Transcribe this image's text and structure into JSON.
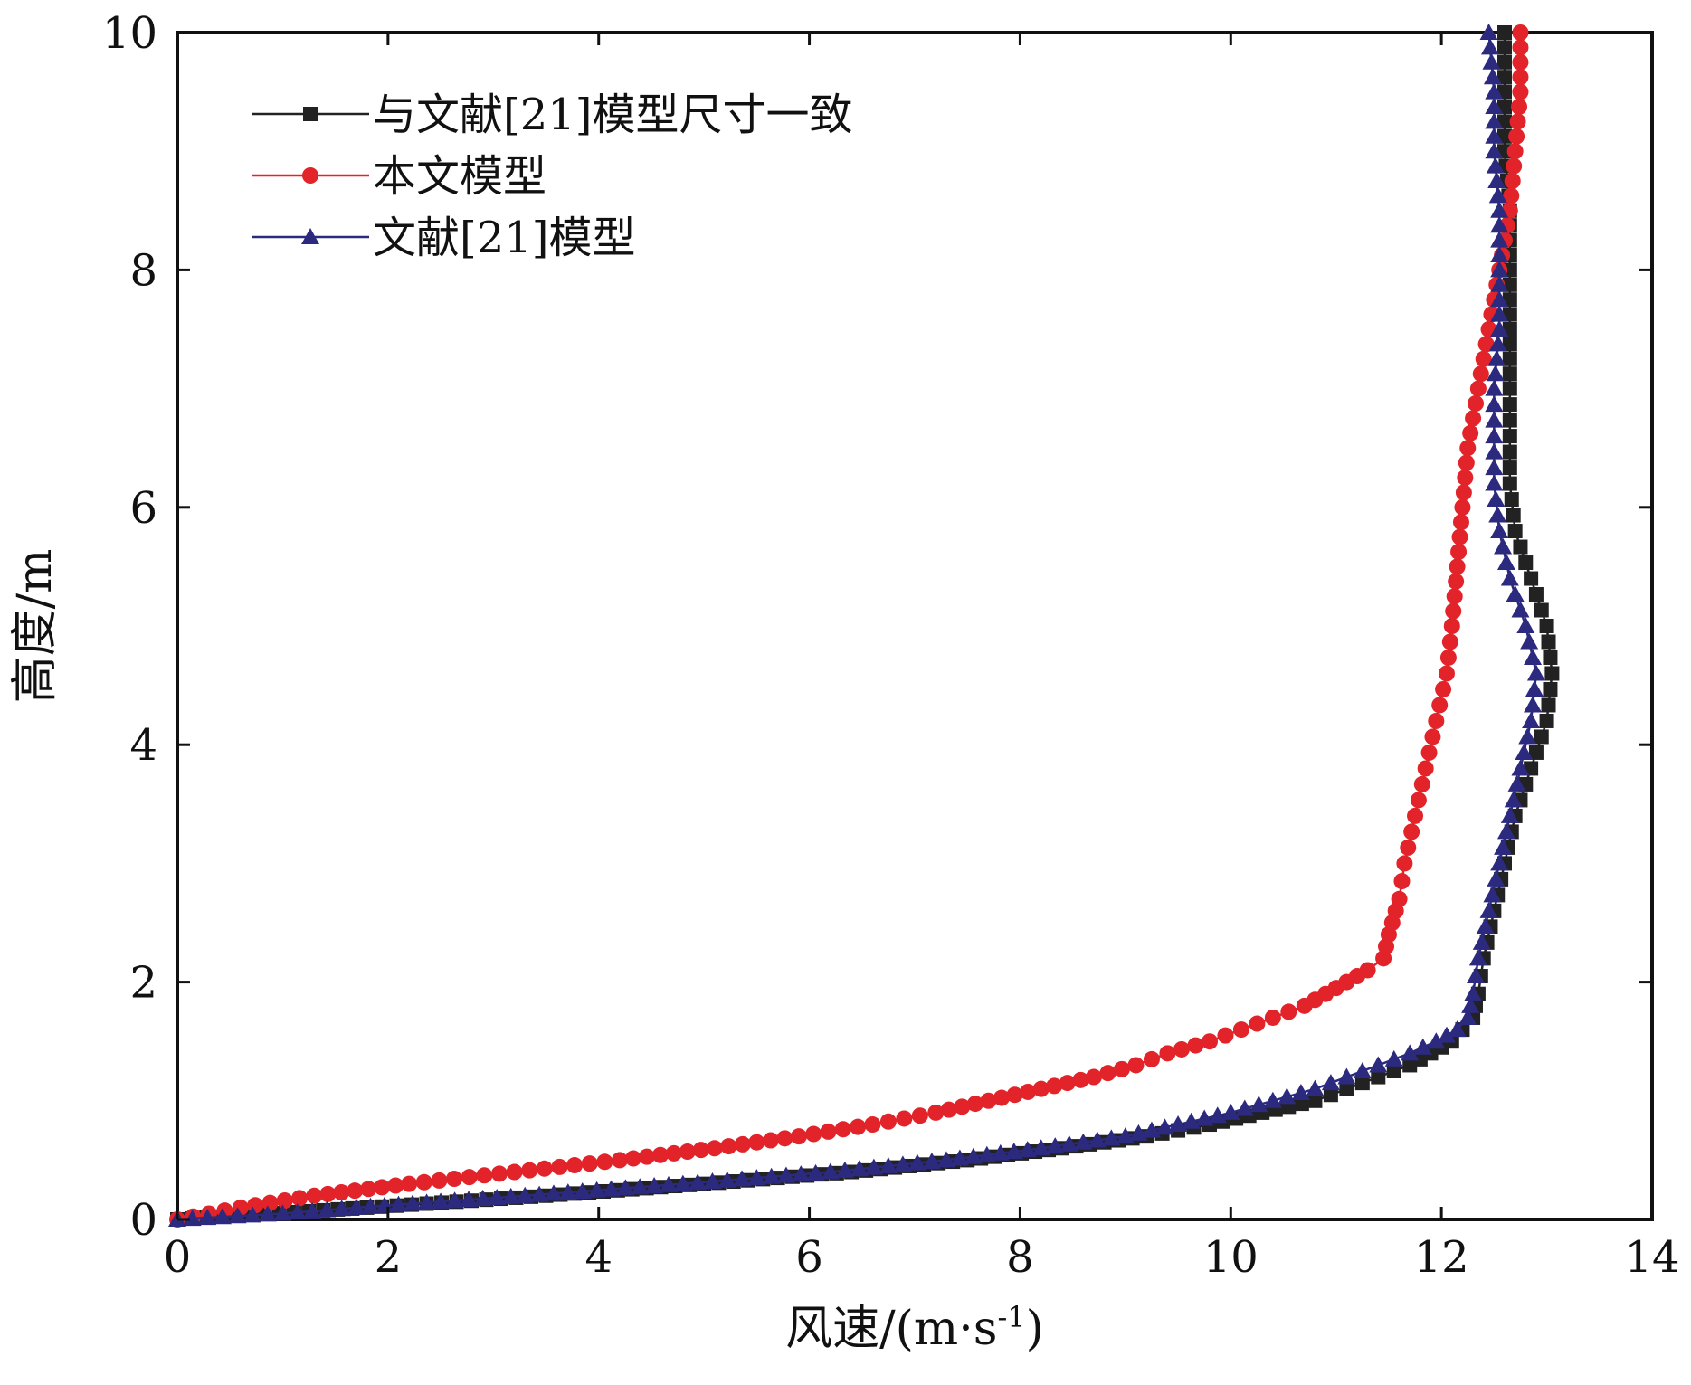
{
  "chart_data": {
    "type": "line",
    "xlabel": "风速/(m·s",
    "xlabel_sup": "-1",
    "xlabel_close": ")",
    "ylabel": "高度/m",
    "xlim": [
      0,
      14
    ],
    "ylim": [
      0,
      10
    ],
    "x_ticks": [
      "0",
      "2",
      "4",
      "6",
      "8",
      "10",
      "12",
      "14"
    ],
    "y_ticks": [
      "0",
      "2",
      "4",
      "6",
      "8",
      "10"
    ],
    "grid": false,
    "legend_position": "top-left",
    "series": [
      {
        "name": "与文献[21]模型尺寸一致",
        "color": "#222222",
        "marker": "square",
        "points": [
          [
            0.0,
            0.0
          ],
          [
            1.8,
            0.1
          ],
          [
            3.5,
            0.2
          ],
          [
            5.0,
            0.3
          ],
          [
            6.4,
            0.4
          ],
          [
            7.5,
            0.5
          ],
          [
            8.4,
            0.6
          ],
          [
            9.2,
            0.7
          ],
          [
            9.8,
            0.8
          ],
          [
            10.3,
            0.9
          ],
          [
            10.8,
            1.0
          ],
          [
            11.1,
            1.1
          ],
          [
            11.4,
            1.2
          ],
          [
            11.7,
            1.3
          ],
          [
            11.9,
            1.4
          ],
          [
            12.1,
            1.5
          ],
          [
            12.2,
            1.6
          ],
          [
            12.3,
            1.7
          ],
          [
            12.35,
            1.9
          ],
          [
            12.4,
            2.2
          ],
          [
            12.5,
            2.6
          ],
          [
            12.6,
            3.0
          ],
          [
            12.7,
            3.4
          ],
          [
            12.85,
            3.8
          ],
          [
            13.0,
            4.2
          ],
          [
            13.05,
            4.6
          ],
          [
            13.0,
            5.0
          ],
          [
            12.85,
            5.4
          ],
          [
            12.7,
            5.8
          ],
          [
            12.65,
            6.2
          ],
          [
            12.65,
            6.6
          ],
          [
            12.65,
            7.0
          ],
          [
            12.65,
            7.5
          ],
          [
            12.65,
            8.0
          ],
          [
            12.65,
            8.5
          ],
          [
            12.6,
            9.0
          ],
          [
            12.6,
            9.5
          ],
          [
            12.6,
            10.0
          ]
        ]
      },
      {
        "name": "本文模型",
        "color": "#e2232a",
        "marker": "circle",
        "points": [
          [
            0.0,
            0.0
          ],
          [
            0.6,
            0.1
          ],
          [
            1.3,
            0.2
          ],
          [
            2.2,
            0.3
          ],
          [
            3.2,
            0.4
          ],
          [
            4.2,
            0.5
          ],
          [
            5.1,
            0.6
          ],
          [
            5.9,
            0.7
          ],
          [
            6.6,
            0.8
          ],
          [
            7.2,
            0.9
          ],
          [
            7.7,
            1.0
          ],
          [
            8.2,
            1.1
          ],
          [
            8.7,
            1.2
          ],
          [
            9.1,
            1.3
          ],
          [
            9.4,
            1.4
          ],
          [
            9.8,
            1.5
          ],
          [
            10.1,
            1.6
          ],
          [
            10.4,
            1.7
          ],
          [
            10.7,
            1.8
          ],
          [
            10.9,
            1.9
          ],
          [
            11.1,
            2.0
          ],
          [
            11.3,
            2.1
          ],
          [
            11.45,
            2.2
          ],
          [
            11.5,
            2.4
          ],
          [
            11.6,
            2.7
          ],
          [
            11.65,
            3.0
          ],
          [
            11.75,
            3.4
          ],
          [
            11.85,
            3.8
          ],
          [
            11.95,
            4.2
          ],
          [
            12.05,
            4.6
          ],
          [
            12.1,
            5.0
          ],
          [
            12.15,
            5.5
          ],
          [
            12.2,
            6.0
          ],
          [
            12.25,
            6.5
          ],
          [
            12.35,
            7.0
          ],
          [
            12.45,
            7.5
          ],
          [
            12.55,
            8.0
          ],
          [
            12.65,
            8.5
          ],
          [
            12.7,
            9.0
          ],
          [
            12.75,
            9.5
          ],
          [
            12.75,
            10.0
          ]
        ]
      },
      {
        "name": "文献[21]模型",
        "color": "#2c2a7f",
        "marker": "triangle",
        "points": [
          [
            0.0,
            0.0
          ],
          [
            1.0,
            0.05
          ],
          [
            1.7,
            0.1
          ],
          [
            3.3,
            0.2
          ],
          [
            4.8,
            0.3
          ],
          [
            6.2,
            0.4
          ],
          [
            7.3,
            0.5
          ],
          [
            8.2,
            0.6
          ],
          [
            9.0,
            0.7
          ],
          [
            9.5,
            0.8
          ],
          [
            10.0,
            0.9
          ],
          [
            10.4,
            1.0
          ],
          [
            10.8,
            1.1
          ],
          [
            11.1,
            1.2
          ],
          [
            11.4,
            1.3
          ],
          [
            11.7,
            1.4
          ],
          [
            11.95,
            1.5
          ],
          [
            12.15,
            1.6
          ],
          [
            12.25,
            1.7
          ],
          [
            12.3,
            1.9
          ],
          [
            12.35,
            2.2
          ],
          [
            12.45,
            2.6
          ],
          [
            12.55,
            3.0
          ],
          [
            12.65,
            3.4
          ],
          [
            12.75,
            3.8
          ],
          [
            12.85,
            4.2
          ],
          [
            12.9,
            4.6
          ],
          [
            12.8,
            5.0
          ],
          [
            12.65,
            5.4
          ],
          [
            12.55,
            5.8
          ],
          [
            12.5,
            6.2
          ],
          [
            12.5,
            6.6
          ],
          [
            12.5,
            7.0
          ],
          [
            12.55,
            7.5
          ],
          [
            12.55,
            8.0
          ],
          [
            12.55,
            8.5
          ],
          [
            12.5,
            9.0
          ],
          [
            12.5,
            9.5
          ],
          [
            12.45,
            10.0
          ]
        ]
      }
    ]
  }
}
